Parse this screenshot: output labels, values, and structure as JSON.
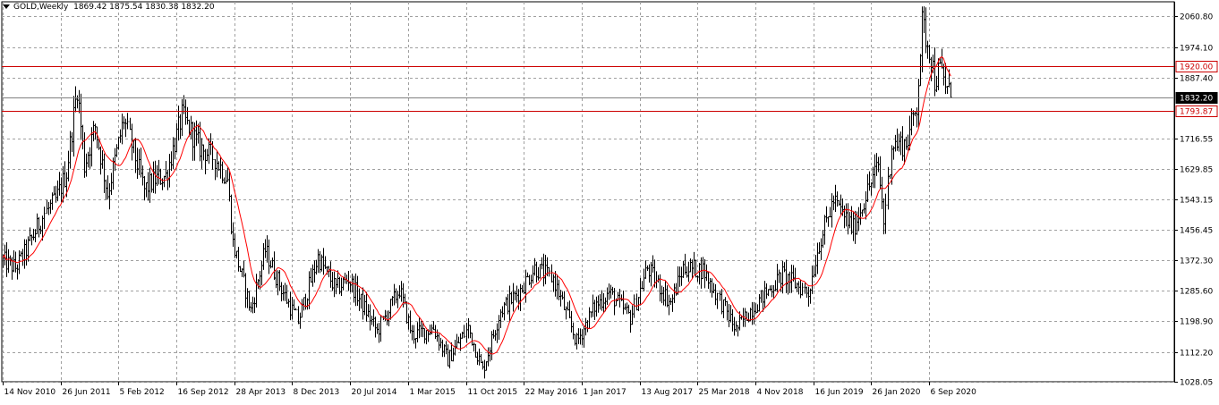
{
  "header": {
    "symbol_timeframe": "GOLD,Weekly",
    "ohlc": "1869.42 1875.54 1830.38 1832.20"
  },
  "chart_data": {
    "type": "ohlc",
    "symbol": "GOLD",
    "timeframe": "Weekly",
    "last_ohlc": {
      "open": 1869.42,
      "high": 1875.54,
      "low": 1830.38,
      "close": 1832.2
    },
    "ylim": [
      1028.05,
      2102.0
    ],
    "grid": true,
    "y_ticks": [
      {
        "value": 2060.8,
        "label": "2060.80"
      },
      {
        "value": 1974.1,
        "label": "1974.10"
      },
      {
        "value": 1887.4,
        "label": "1887.40"
      },
      {
        "value": 1716.55,
        "label": "1716.55"
      },
      {
        "value": 1629.85,
        "label": "1629.85"
      },
      {
        "value": 1543.15,
        "label": "1543.15"
      },
      {
        "value": 1456.45,
        "label": "1456.45"
      },
      {
        "value": 1372.3,
        "label": "1372.30"
      },
      {
        "value": 1285.6,
        "label": "1285.60"
      },
      {
        "value": 1198.9,
        "label": "1198.90"
      },
      {
        "value": 1112.2,
        "label": "1112.20"
      },
      {
        "value": 1028.05,
        "label": "1028.05"
      }
    ],
    "x_ticks": [
      {
        "date": "2010-11-14",
        "label": "14 Nov 2010"
      },
      {
        "date": "2011-06-26",
        "label": "26 Jun 2011"
      },
      {
        "date": "2012-02-05",
        "label": "5 Feb 2012"
      },
      {
        "date": "2012-09-16",
        "label": "16 Sep 2012"
      },
      {
        "date": "2013-04-28",
        "label": "28 Apr 2013"
      },
      {
        "date": "2013-12-08",
        "label": "8 Dec 2013"
      },
      {
        "date": "2014-07-20",
        "label": "20 Jul 2014"
      },
      {
        "date": "2015-03-01",
        "label": "1 Mar 2015"
      },
      {
        "date": "2015-10-11",
        "label": "11 Oct 2015"
      },
      {
        "date": "2016-05-22",
        "label": "22 May 2016"
      },
      {
        "date": "2017-01-01",
        "label": "1 Jan 2017"
      },
      {
        "date": "2017-08-13",
        "label": "13 Aug 2017"
      },
      {
        "date": "2018-03-25",
        "label": "25 Mar 2018"
      },
      {
        "date": "2018-11-04",
        "label": "4 Nov 2018"
      },
      {
        "date": "2019-06-16",
        "label": "16 Jun 2019"
      },
      {
        "date": "2020-01-26",
        "label": "26 Jan 2020"
      },
      {
        "date": "2020-09-06",
        "label": "6 Sep 2020"
      }
    ],
    "price_path": [
      [
        "2010-11-14",
        1370
      ],
      [
        "2011-01-02",
        1350
      ],
      [
        "2011-02-06",
        1390
      ],
      [
        "2011-04-24",
        1505
      ],
      [
        "2011-06-05",
        1540
      ],
      [
        "2011-07-17",
        1620
      ],
      [
        "2011-08-28",
        1860
      ],
      [
        "2011-09-25",
        1640
      ],
      [
        "2011-11-06",
        1750
      ],
      [
        "2011-12-25",
        1560
      ],
      [
        "2012-02-26",
        1770
      ],
      [
        "2012-05-13",
        1570
      ],
      [
        "2012-06-24",
        1600
      ],
      [
        "2012-08-05",
        1610
      ],
      [
        "2012-10-07",
        1780
      ],
      [
        "2012-12-16",
        1690
      ],
      [
        "2013-02-10",
        1660
      ],
      [
        "2013-03-31",
        1600
      ],
      [
        "2013-04-21",
        1420
      ],
      [
        "2013-06-30",
        1230
      ],
      [
        "2013-08-25",
        1400
      ],
      [
        "2013-11-03",
        1280
      ],
      [
        "2013-12-29",
        1200
      ],
      [
        "2014-03-16",
        1380
      ],
      [
        "2014-05-25",
        1290
      ],
      [
        "2014-07-13",
        1320
      ],
      [
        "2014-11-02",
        1170
      ],
      [
        "2015-01-25",
        1290
      ],
      [
        "2015-03-15",
        1160
      ],
      [
        "2015-06-07",
        1180
      ],
      [
        "2015-08-02",
        1090
      ],
      [
        "2015-10-18",
        1180
      ],
      [
        "2015-12-13",
        1060
      ],
      [
        "2016-02-21",
        1230
      ],
      [
        "2016-05-01",
        1280
      ],
      [
        "2016-07-03",
        1350
      ],
      [
        "2016-09-11",
        1320
      ],
      [
        "2016-12-11",
        1140
      ],
      [
        "2017-02-19",
        1240
      ],
      [
        "2017-04-16",
        1280
      ],
      [
        "2017-07-09",
        1210
      ],
      [
        "2017-09-10",
        1350
      ],
      [
        "2017-12-10",
        1250
      ],
      [
        "2018-01-28",
        1350
      ],
      [
        "2018-04-15",
        1345
      ],
      [
        "2018-08-19",
        1175
      ],
      [
        "2018-10-14",
        1230
      ],
      [
        "2019-02-17",
        1330
      ],
      [
        "2019-05-26",
        1280
      ],
      [
        "2019-07-07",
        1420
      ],
      [
        "2019-09-01",
        1540
      ],
      [
        "2019-11-17",
        1460
      ],
      [
        "2020-01-05",
        1555
      ],
      [
        "2020-02-23",
        1640
      ],
      [
        "2020-03-15",
        1480
      ],
      [
        "2020-04-12",
        1700
      ],
      [
        "2020-06-07",
        1700
      ],
      [
        "2020-07-19",
        1810
      ],
      [
        "2020-08-09",
        2040
      ],
      [
        "2020-09-13",
        1950
      ],
      [
        "2020-09-27",
        1880
      ],
      [
        "2020-10-18",
        1910
      ],
      [
        "2020-11-29",
        1830
      ]
    ],
    "series": [
      {
        "type": "ohlc",
        "color": "#000000"
      },
      {
        "type": "moving_average",
        "color": "#ff0000"
      }
    ],
    "horizontal_lines": [
      {
        "value": 1920.0,
        "label": "1920.00",
        "color": "#cc0000"
      },
      {
        "value": 1832.2,
        "label": "1832.20",
        "color": "#808080",
        "label_bg": "#000000"
      },
      {
        "value": 1793.87,
        "label": "1793.87",
        "color": "#cc0000"
      }
    ]
  }
}
